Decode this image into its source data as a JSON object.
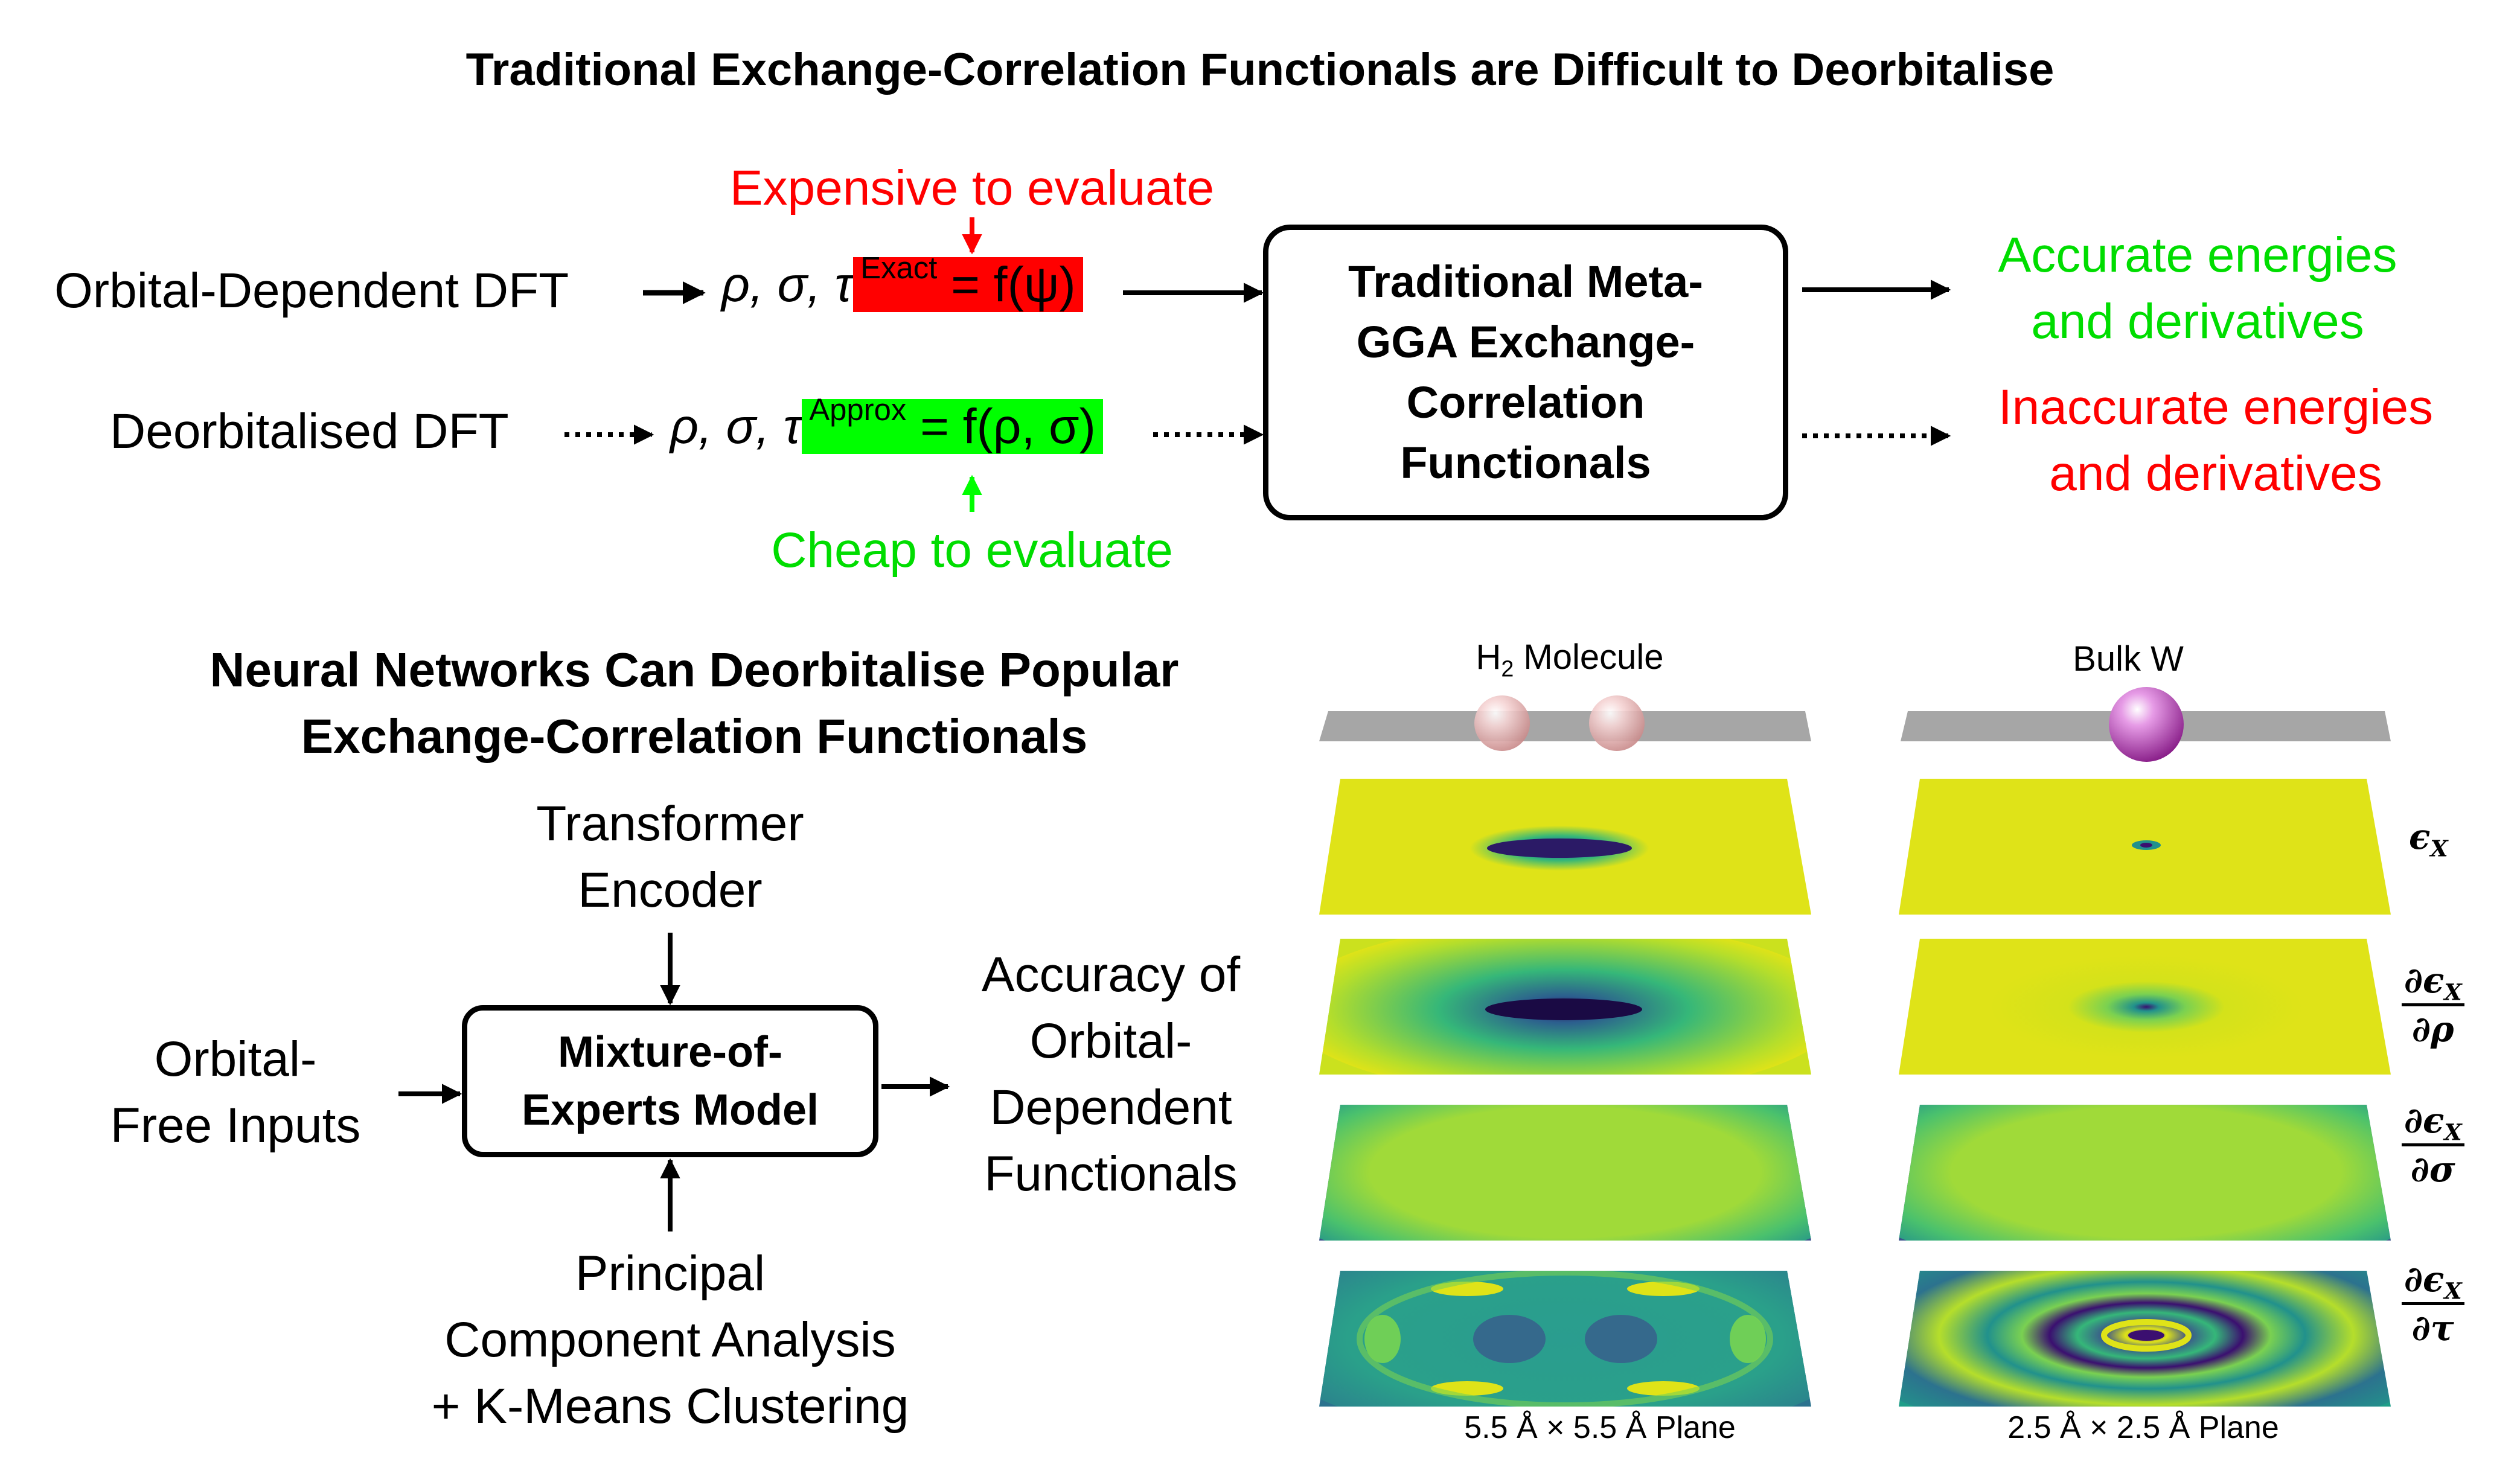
{
  "top": {
    "title": "Traditional Exchange-Correlation Functionals are Difficult to Deorbitalise",
    "expensive": "Expensive to evaluate",
    "cheap": "Cheap to evaluate",
    "orbital_dft": "Orbital-Dependent DFT",
    "deorb_dft": "Deorbitalised DFT",
    "vars_prefix": "ρ, σ, τ",
    "tau_exact_sup": "Exact",
    "tau_exact_rhs": "= f(ψ)",
    "tau_approx_sup": "Approx",
    "tau_approx_rhs": "= f(ρ, σ)",
    "box_lines": [
      "Traditional Meta-",
      "GGA Exchange-",
      "Correlation",
      "Functionals"
    ],
    "out_good": [
      "Accurate energies",
      "and derivatives"
    ],
    "out_bad": [
      "Inaccurate energies",
      "and derivatives"
    ]
  },
  "bottom": {
    "title_lines": [
      "Neural Networks Can Deorbitalise Popular",
      "Exchange-Correlation Functionals"
    ],
    "transformer": [
      "Transformer",
      "Encoder"
    ],
    "inputs": [
      "Orbital-",
      "Free Inputs"
    ],
    "moe": [
      "Mixture-of-",
      "Experts Model"
    ],
    "pca": [
      "Principal",
      "Component Analysis",
      "+ K-Means Clustering"
    ],
    "accuracy": [
      "Accuracy of",
      "Orbital-",
      "Dependent",
      "Functionals"
    ]
  },
  "panels": {
    "h2_title_main": "H",
    "h2_title_sub": "2",
    "h2_title_rest": "Molecule",
    "bulkw_title": "Bulk W",
    "h2_caption": "5.5 Å × 5.5 Å Plane",
    "bulkw_caption": "2.5 Å × 2.5 Å Plane",
    "row_labels": {
      "eps": "ϵ",
      "x_sub": "X",
      "d": "∂",
      "rho": "ρ",
      "sigma": "σ",
      "tau": "τ"
    }
  },
  "colors": {
    "red": "#ff0000",
    "green": "#00ff00",
    "green_text": "#00dd00",
    "viridis_yellow": "#dfe318",
    "viridis_dark": "#3b0f70",
    "slab": "#a6a6a6"
  }
}
